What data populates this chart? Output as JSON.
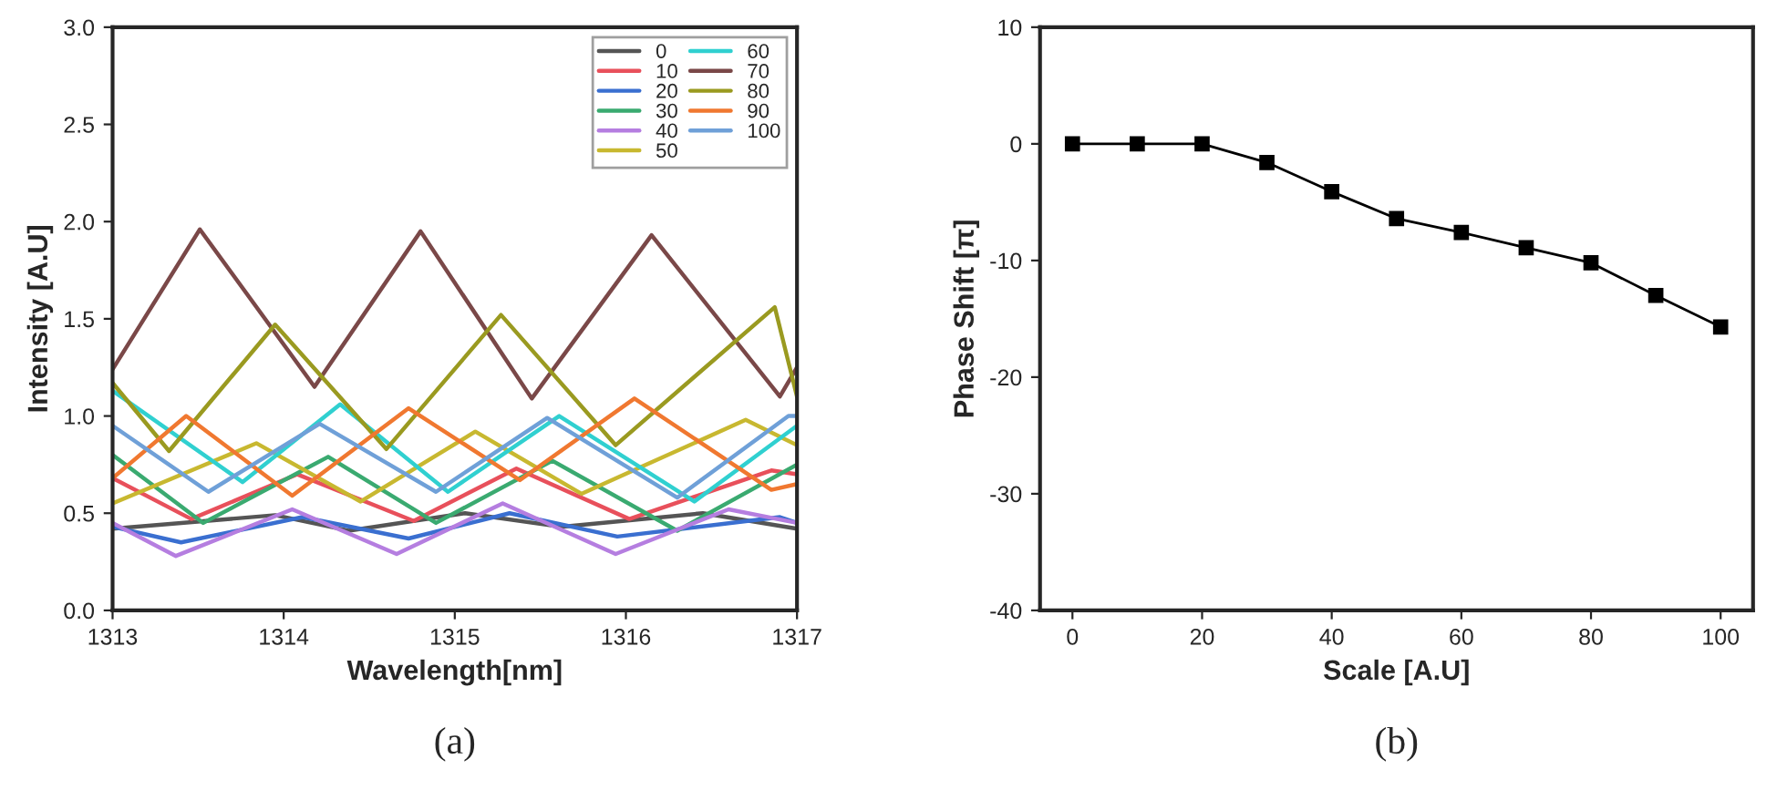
{
  "chart_data": [
    {
      "type": "line",
      "xlabel": "Wavelength[nm]",
      "ylabel": "Intensity [A.U]",
      "annotations": [
        "(a)"
      ],
      "xlim": [
        1313,
        1317
      ],
      "xticks": [
        1313,
        1314,
        1315,
        1316,
        1317
      ],
      "ylim": [
        0,
        3.0
      ],
      "yticks": [
        {
          "value": 0,
          "label": "0.0"
        },
        {
          "value": 0.5,
          "label": "0.5"
        },
        {
          "value": 1.0,
          "label": "1.0"
        },
        {
          "value": 1.5,
          "label": "1.5"
        },
        {
          "value": 2.0,
          "label": "2.0"
        },
        {
          "value": 2.5,
          "label": "2.5"
        },
        {
          "value": 3.0,
          "label": "3.0"
        }
      ],
      "legend": "top right",
      "grid": false,
      "marker": "none",
      "line_style": "solid",
      "series": [
        {
          "name": "0",
          "color": "#555555",
          "x": [
            1313,
            1313.95,
            1314.38,
            1315.06,
            1315.62,
            1316.45,
            1317
          ],
          "values": [
            0.42,
            0.49,
            0.41,
            0.5,
            0.43,
            0.5,
            0.42
          ]
        },
        {
          "name": "10",
          "color": "#e8505b",
          "x": [
            1313,
            1313.46,
            1314.08,
            1314.76,
            1315.36,
            1316.02,
            1316.85,
            1317
          ],
          "values": [
            0.68,
            0.47,
            0.7,
            0.46,
            0.73,
            0.47,
            0.72,
            0.7
          ]
        },
        {
          "name": "20",
          "color": "#3a6fd0",
          "x": [
            1313,
            1313.4,
            1314.11,
            1314.73,
            1315.32,
            1315.95,
            1316.9,
            1317
          ],
          "values": [
            0.43,
            0.35,
            0.48,
            0.37,
            0.5,
            0.38,
            0.48,
            0.45
          ]
        },
        {
          "name": "30",
          "color": "#3aaa70",
          "x": [
            1313,
            1313.53,
            1314.26,
            1314.89,
            1315.57,
            1316.3,
            1317
          ],
          "values": [
            0.8,
            0.45,
            0.79,
            0.45,
            0.77,
            0.41,
            0.75
          ]
        },
        {
          "name": "40",
          "color": "#b57ee0",
          "x": [
            1313,
            1313.37,
            1314.05,
            1314.66,
            1315.28,
            1315.94,
            1316.6,
            1317
          ],
          "values": [
            0.45,
            0.28,
            0.52,
            0.29,
            0.55,
            0.29,
            0.52,
            0.45
          ]
        },
        {
          "name": "50",
          "color": "#c8b830",
          "x": [
            1313,
            1313.84,
            1314.45,
            1315.12,
            1315.74,
            1316.7,
            1317
          ],
          "values": [
            0.55,
            0.86,
            0.56,
            0.92,
            0.6,
            0.98,
            0.85
          ]
        },
        {
          "name": "60",
          "color": "#30d0d0",
          "x": [
            1313,
            1313.76,
            1314.33,
            1314.96,
            1315.61,
            1316.4,
            1317
          ],
          "values": [
            1.13,
            0.66,
            1.06,
            0.61,
            1.0,
            0.56,
            0.95
          ]
        },
        {
          "name": "70",
          "color": "#7a4848",
          "x": [
            1313,
            1313.51,
            1314.18,
            1314.8,
            1315.45,
            1316.15,
            1316.9,
            1317
          ],
          "values": [
            1.24,
            1.96,
            1.15,
            1.95,
            1.09,
            1.93,
            1.1,
            1.25
          ]
        },
        {
          "name": "80",
          "color": "#9a9a20",
          "x": [
            1313,
            1313.33,
            1313.95,
            1314.6,
            1315.27,
            1315.94,
            1316.87,
            1317
          ],
          "values": [
            1.17,
            0.82,
            1.47,
            0.83,
            1.52,
            0.85,
            1.56,
            1.1
          ]
        },
        {
          "name": "90",
          "color": "#f07830",
          "x": [
            1313,
            1313.43,
            1314.05,
            1314.73,
            1315.38,
            1316.05,
            1316.85,
            1317
          ],
          "values": [
            0.68,
            1.0,
            0.59,
            1.04,
            0.67,
            1.09,
            0.62,
            0.65
          ]
        },
        {
          "name": "100",
          "color": "#6fa0d8",
          "x": [
            1313,
            1313.56,
            1314.21,
            1314.89,
            1315.54,
            1316.3,
            1316.95,
            1317
          ],
          "values": [
            0.95,
            0.61,
            0.96,
            0.61,
            0.99,
            0.58,
            1.0,
            1.0
          ]
        }
      ]
    },
    {
      "type": "line",
      "xlabel": "Scale [A.U]",
      "ylabel": "Phase Shift [π]",
      "annotations": [
        "(b)"
      ],
      "xlim": [
        -5,
        105
      ],
      "xticks": [
        0,
        20,
        40,
        60,
        80,
        100
      ],
      "ylim": [
        -40,
        10
      ],
      "yticks": [
        -40,
        -30,
        -20,
        -10,
        0,
        10
      ],
      "grid": false,
      "marker": "square",
      "line_style": "solid",
      "series": [
        {
          "color": "#000000",
          "x": [
            0,
            10,
            20,
            30,
            40,
            50,
            60,
            70,
            80,
            90,
            100
          ],
          "values": [
            0,
            0,
            0,
            -1.6,
            -4.1,
            -6.4,
            -7.6,
            -8.9,
            -10.2,
            -13.0,
            -15.7
          ]
        }
      ]
    }
  ]
}
